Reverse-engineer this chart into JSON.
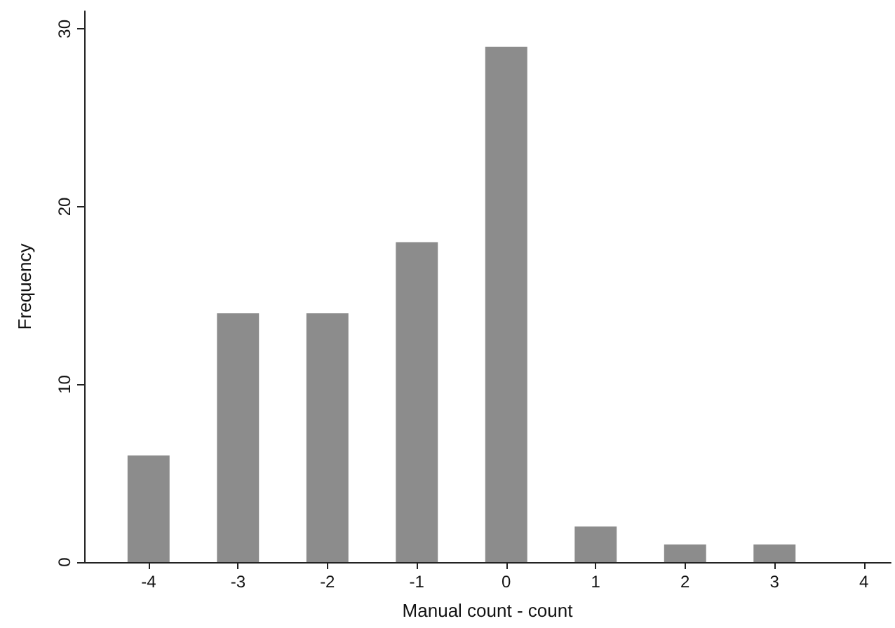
{
  "chart_data": {
    "type": "bar",
    "x": [
      -4,
      -3,
      -2,
      -1,
      0,
      1,
      2,
      3
    ],
    "values": [
      6,
      14,
      14,
      18,
      29,
      2,
      1,
      1
    ],
    "color": "#8c8c8c",
    "xlabel": "Manual count - count",
    "ylabel": "Frequency",
    "xlim": [
      -4.72,
      4.3
    ],
    "xticks": [
      -4,
      -3,
      -2,
      -1,
      0,
      1,
      2,
      3,
      4
    ],
    "ylim": [
      0,
      31
    ],
    "yticks": [
      0,
      10,
      20,
      30
    ]
  }
}
